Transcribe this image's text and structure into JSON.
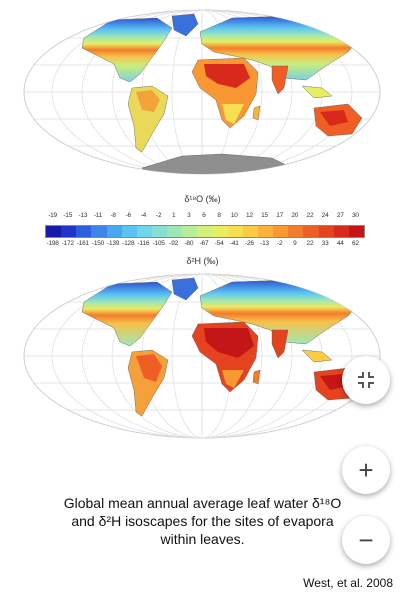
{
  "legend": {
    "title_o18": "δ¹⁸O (‰)",
    "title_h2": "δ²H (‰)",
    "o18_ticks": [
      "-19",
      "-15",
      "-13",
      "-11",
      "-8",
      "-6",
      "-4",
      "-2",
      "1",
      "3",
      "6",
      "8",
      "10",
      "12",
      "15",
      "17",
      "20",
      "22",
      "24",
      "27",
      "30"
    ],
    "h2_ticks": [
      "-198",
      "-172",
      "-161",
      "-150",
      "-139",
      "-128",
      "-116",
      "-105",
      "-92",
      "-80",
      "-67",
      "-54",
      "-41",
      "-26",
      "-13",
      "-2",
      "9",
      "22",
      "33",
      "44",
      "62"
    ],
    "colors": [
      "#1a1aa8",
      "#2433c8",
      "#2b5fdc",
      "#3b86e6",
      "#4aa6ee",
      "#5cc2f2",
      "#70d4ea",
      "#86e0d2",
      "#9ee8b6",
      "#b8ee96",
      "#d2f07a",
      "#e8ee62",
      "#f6e052",
      "#fbcb45",
      "#fbb23a",
      "#f99832",
      "#f57c2b",
      "#ef5f25",
      "#e54320",
      "#d82a1c",
      "#c41616"
    ]
  },
  "caption": {
    "line1": "Global mean annual average leaf water δ¹⁸O",
    "line2": "and δ²H isoscapes for the sites of evapora",
    "line3": "within leaves."
  },
  "credit": "West, et al. 2008",
  "controls": {
    "fullscreen_icon": "fullscreen-exit-icon",
    "zoom_in_icon": "plus-icon",
    "zoom_out_icon": "minus-icon",
    "zoom_in_label": "+",
    "zoom_out_label": "−"
  }
}
